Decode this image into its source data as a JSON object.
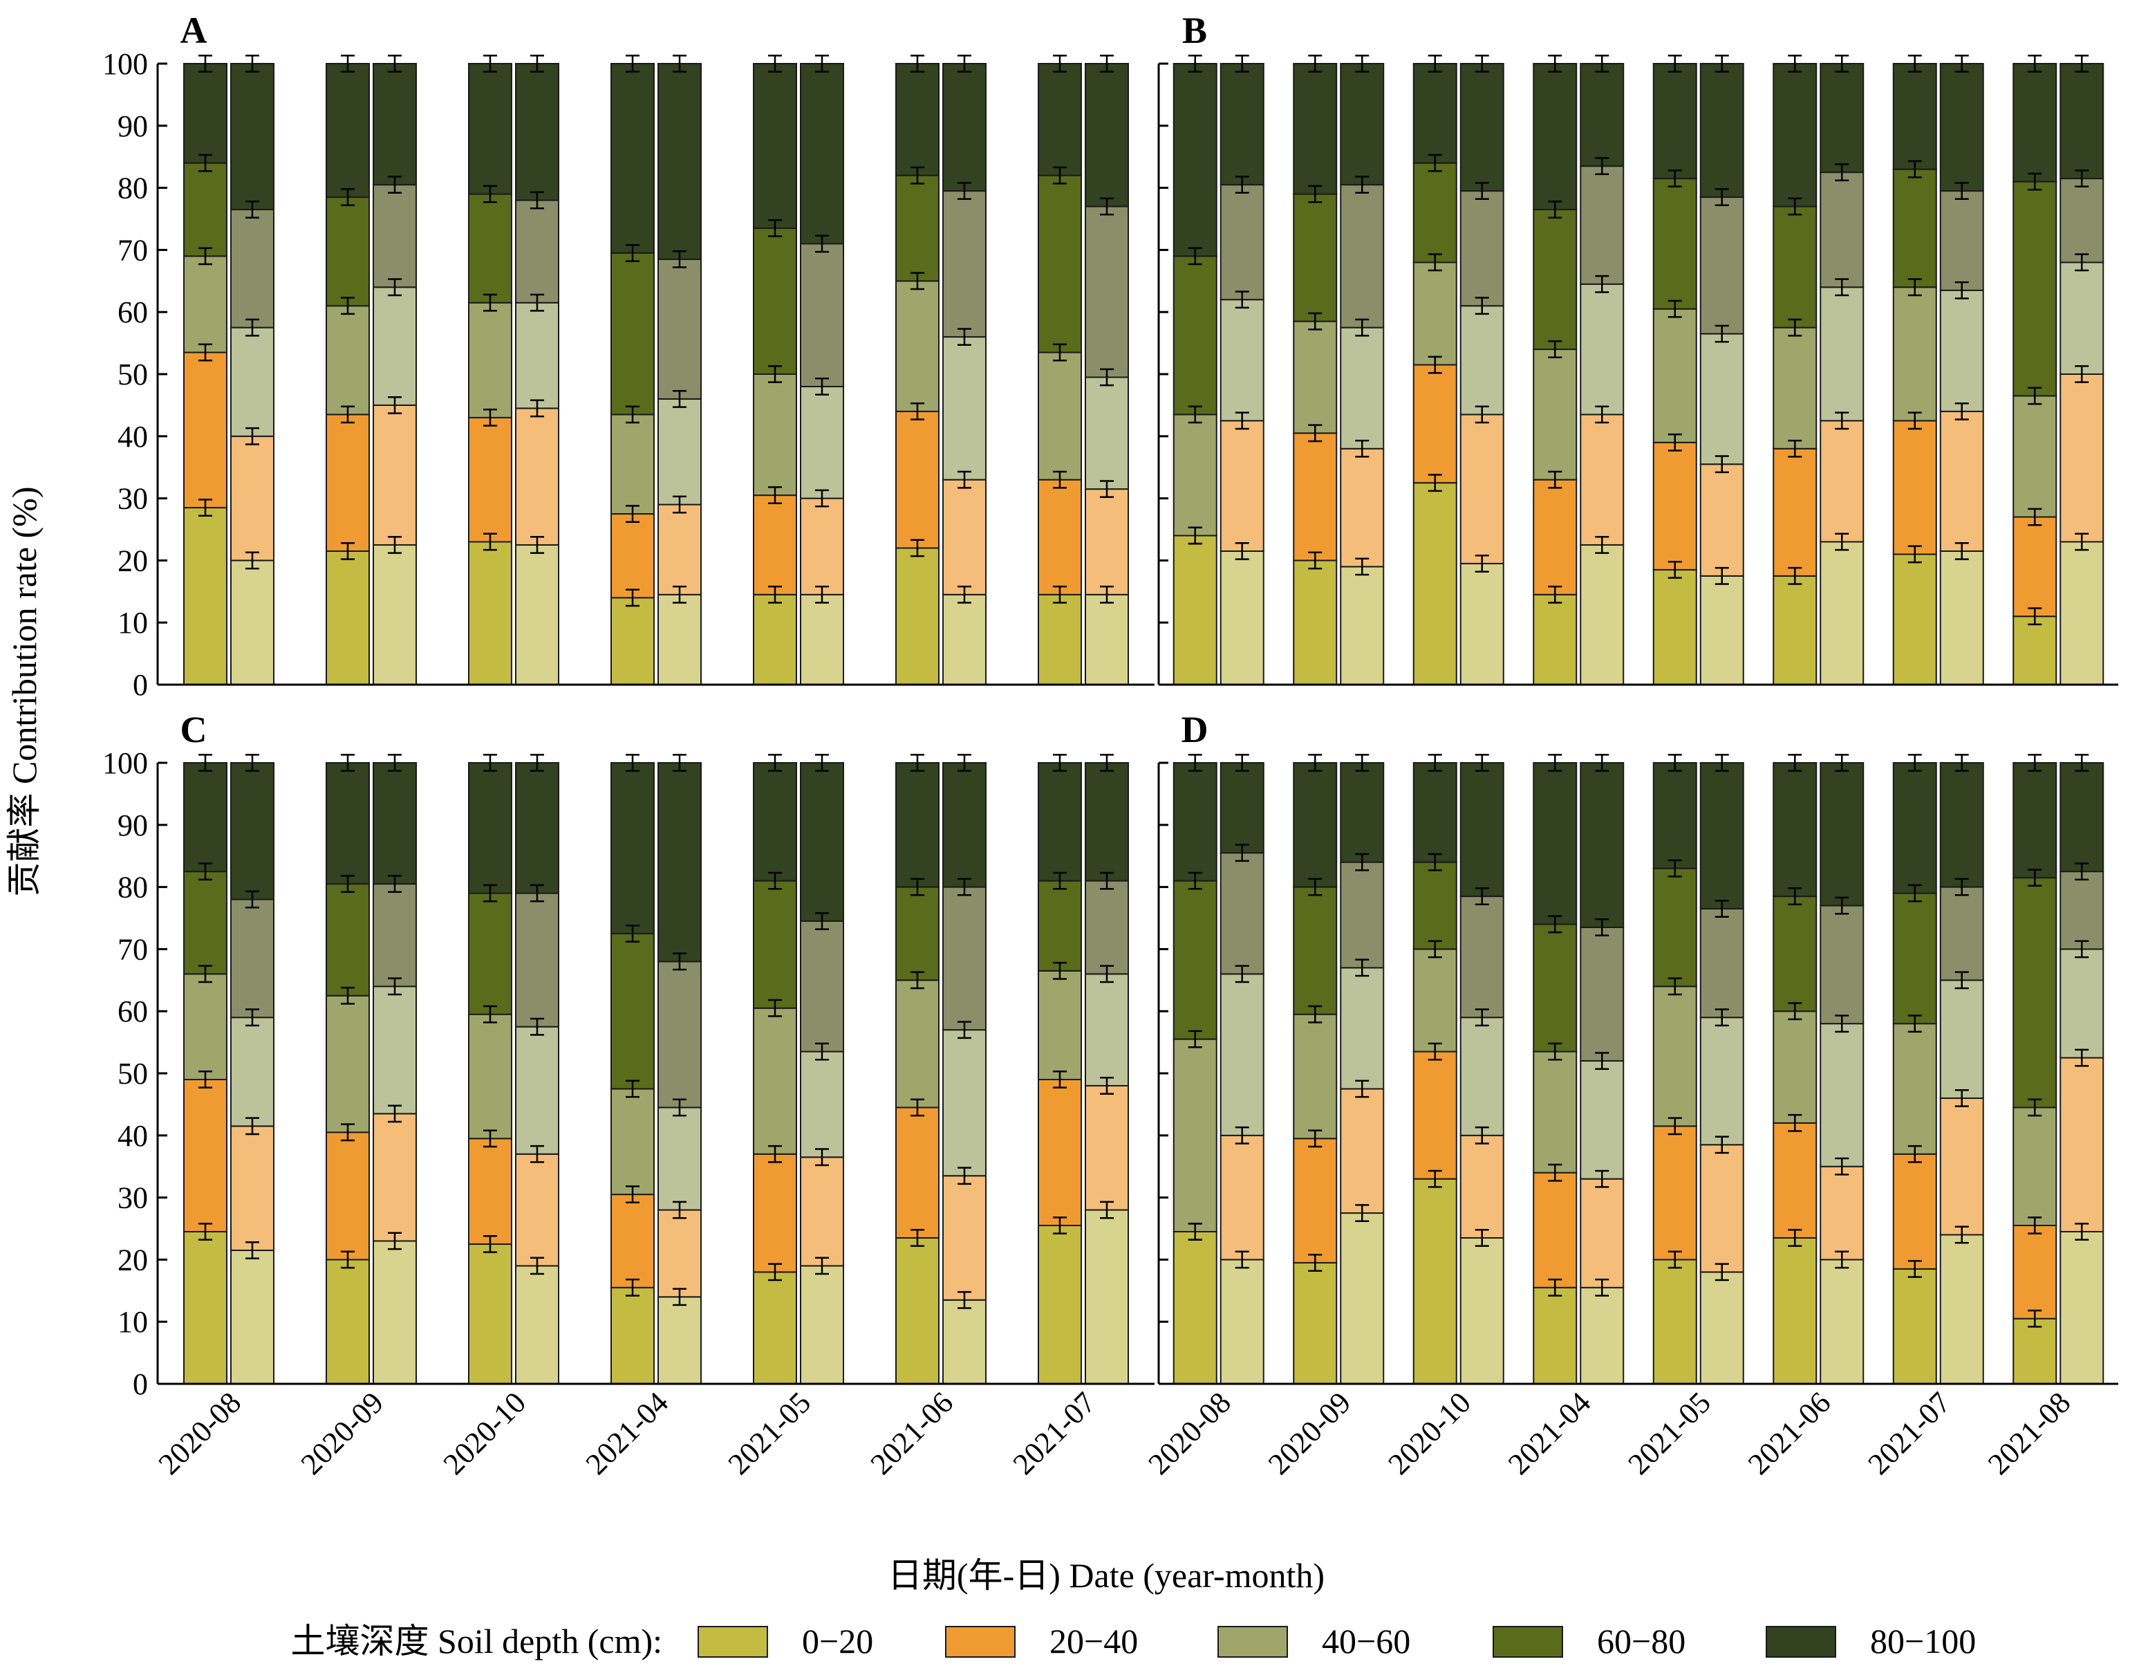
{
  "figure": {
    "ylabel": "贡献率  Contribution rate (%)",
    "xlabel": "日期(年-日) Date (year-month)",
    "legend_title": "土壤深度 Soil depth (cm):",
    "legend": [
      {
        "label": "0−20",
        "color": "#c4bb43"
      },
      {
        "label": "20−40",
        "color": "#f09b32"
      },
      {
        "label": "40−60",
        "color": "#9fa66b"
      },
      {
        "label": "60−80",
        "color": "#5a6b1b"
      },
      {
        "label": "80−100",
        "color": "#334220"
      }
    ],
    "light_colors": [
      "#d8d48f",
      "#f4bd7a",
      "#bcc39b",
      "#8a8f6a",
      "#334220"
    ]
  },
  "chart_data": [
    {
      "panel": "A",
      "type": "bar",
      "stacked": true,
      "ylim": [
        0,
        100
      ],
      "yticks": [
        0,
        10,
        20,
        30,
        40,
        50,
        60,
        70,
        80,
        90,
        100
      ],
      "categories": [
        "2020-08",
        "2020-09",
        "2020-10",
        "2021-04",
        "2021-05",
        "2021-06",
        "2021-07"
      ],
      "cumulative_boundaries_bar1": [
        [
          28.5,
          53.5,
          69.0,
          84.0,
          100
        ],
        [
          21.5,
          43.5,
          61.0,
          78.5,
          100
        ],
        [
          23.0,
          43.0,
          61.5,
          79.0,
          100
        ],
        [
          14.0,
          27.5,
          43.5,
          69.5,
          100
        ],
        [
          14.5,
          30.5,
          50.0,
          73.5,
          100
        ],
        [
          22.0,
          44.0,
          65.0,
          82.0,
          100
        ],
        [
          14.5,
          33.0,
          53.5,
          82.0,
          100
        ]
      ],
      "cumulative_boundaries_bar2": [
        [
          20.0,
          40.0,
          57.5,
          76.5,
          100
        ],
        [
          22.5,
          45.0,
          64.0,
          80.5,
          100
        ],
        [
          22.5,
          44.5,
          61.5,
          78.0,
          100
        ],
        [
          14.5,
          29.0,
          46.0,
          68.5,
          100
        ],
        [
          14.5,
          30.0,
          48.0,
          71.0,
          100
        ],
        [
          14.5,
          33.0,
          56.0,
          79.5,
          100
        ],
        [
          14.5,
          31.5,
          49.5,
          77.0,
          100
        ]
      ]
    },
    {
      "panel": "B",
      "type": "bar",
      "stacked": true,
      "ylim": [
        0,
        100
      ],
      "yticks": [
        0,
        10,
        20,
        30,
        40,
        50,
        60,
        70,
        80,
        90,
        100
      ],
      "categories": [
        "2020-08",
        "2020-09",
        "2020-10",
        "2021-04",
        "2021-05",
        "2021-06",
        "2021-07",
        "2021-08"
      ],
      "cumulative_boundaries_bar1": [
        [
          24.0,
          24.0,
          43.5,
          69.0,
          100
        ],
        [
          20.0,
          40.5,
          58.5,
          79.0,
          100
        ],
        [
          32.5,
          51.5,
          68.0,
          84.0,
          100
        ],
        [
          14.5,
          33.0,
          54.0,
          76.5,
          100
        ],
        [
          18.5,
          39.0,
          60.5,
          81.5,
          100
        ],
        [
          17.5,
          38.0,
          57.5,
          77.0,
          100
        ],
        [
          21.0,
          42.5,
          64.0,
          83.0,
          100
        ],
        [
          11.0,
          27.0,
          46.5,
          81.0,
          100
        ]
      ],
      "cumulative_boundaries_bar2": [
        [
          21.5,
          42.5,
          62.0,
          80.5,
          100
        ],
        [
          19.0,
          38.0,
          57.5,
          80.5,
          100
        ],
        [
          19.5,
          43.5,
          61.0,
          79.5,
          100
        ],
        [
          22.5,
          43.5,
          64.5,
          83.5,
          100
        ],
        [
          17.5,
          35.5,
          56.5,
          78.5,
          100
        ],
        [
          23.0,
          42.5,
          64.0,
          82.5,
          100
        ],
        [
          21.5,
          44.0,
          63.5,
          79.5,
          100
        ],
        [
          23.0,
          50.0,
          68.0,
          81.5,
          100
        ]
      ]
    },
    {
      "panel": "C",
      "type": "bar",
      "stacked": true,
      "ylim": [
        0,
        100
      ],
      "yticks": [
        0,
        10,
        20,
        30,
        40,
        50,
        60,
        70,
        80,
        90,
        100
      ],
      "categories": [
        "2020-08",
        "2020-09",
        "2020-10",
        "2021-04",
        "2021-05",
        "2021-06",
        "2021-07"
      ],
      "cumulative_boundaries_bar1": [
        [
          24.5,
          49.0,
          66.0,
          82.5,
          100
        ],
        [
          20.0,
          40.5,
          62.5,
          80.5,
          100
        ],
        [
          22.5,
          39.5,
          59.5,
          79.0,
          100
        ],
        [
          15.5,
          30.5,
          47.5,
          72.5,
          100
        ],
        [
          18.0,
          37.0,
          60.5,
          81.0,
          100
        ],
        [
          23.5,
          44.5,
          65.0,
          80.0,
          100
        ],
        [
          25.5,
          49.0,
          66.5,
          81.0,
          100
        ]
      ],
      "cumulative_boundaries_bar2": [
        [
          21.5,
          41.5,
          59.0,
          78.0,
          100
        ],
        [
          23.0,
          43.5,
          64.0,
          80.5,
          100
        ],
        [
          19.0,
          37.0,
          57.5,
          79.0,
          100
        ],
        [
          14.0,
          28.0,
          44.5,
          68.0,
          100
        ],
        [
          19.0,
          36.5,
          53.5,
          74.5,
          100
        ],
        [
          13.5,
          33.5,
          57.0,
          80.0,
          100
        ],
        [
          28.0,
          48.0,
          66.0,
          81.0,
          100
        ]
      ]
    },
    {
      "panel": "D",
      "type": "bar",
      "stacked": true,
      "ylim": [
        0,
        100
      ],
      "yticks": [
        0,
        10,
        20,
        30,
        40,
        50,
        60,
        70,
        80,
        90,
        100
      ],
      "categories": [
        "2020-08",
        "2020-09",
        "2020-10",
        "2021-04",
        "2021-05",
        "2021-06",
        "2021-07",
        "2021-08"
      ],
      "cumulative_boundaries_bar1": [
        [
          24.5,
          24.5,
          55.5,
          81.0,
          100
        ],
        [
          19.5,
          39.5,
          59.5,
          80.0,
          100
        ],
        [
          33.0,
          53.5,
          70.0,
          84.0,
          100
        ],
        [
          15.5,
          34.0,
          53.5,
          74.0,
          100
        ],
        [
          20.0,
          41.5,
          64.0,
          83.0,
          100
        ],
        [
          23.5,
          42.0,
          60.0,
          78.5,
          100
        ],
        [
          18.5,
          37.0,
          58.0,
          79.0,
          100
        ],
        [
          10.5,
          25.5,
          44.5,
          81.5,
          100
        ]
      ],
      "cumulative_boundaries_bar2": [
        [
          20.0,
          40.0,
          66.0,
          85.5,
          100
        ],
        [
          27.5,
          47.5,
          67.0,
          84.0,
          100
        ],
        [
          23.5,
          40.0,
          59.0,
          78.5,
          100
        ],
        [
          15.5,
          33.0,
          52.0,
          73.5,
          100
        ],
        [
          18.0,
          38.5,
          59.0,
          76.5,
          100
        ],
        [
          20.0,
          35.0,
          58.0,
          77.0,
          100
        ],
        [
          24.0,
          46.0,
          65.0,
          80.0,
          100
        ],
        [
          24.5,
          52.5,
          70.0,
          82.5,
          100
        ]
      ]
    }
  ]
}
